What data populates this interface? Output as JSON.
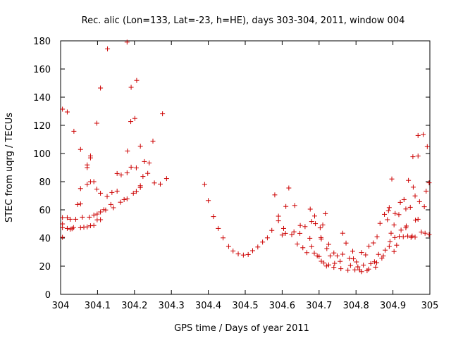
{
  "chart_data": {
    "type": "scatter",
    "title": "Rec. alic (Lon=133, Lat=-23, h=HE), days 303-304, 2011, window 004",
    "xlabel": "GPS time / Days of year 2011",
    "ylabel": "STEC from uqrg / TECUs",
    "xlim": [
      304,
      305
    ],
    "ylim": [
      0,
      180
    ],
    "x_ticks": [
      "304",
      "304.1",
      "304.2",
      "304.3",
      "304.4",
      "304.5",
      "304.6",
      "304.7",
      "304.8",
      "304.9",
      "305"
    ],
    "y_ticks": [
      "0",
      "20",
      "40",
      "60",
      "80",
      "100",
      "120",
      "140",
      "160",
      "180"
    ],
    "x_tick_values": [
      304,
      304.1,
      304.2,
      304.3,
      304.4,
      304.5,
      304.6,
      304.7,
      304.8,
      304.9,
      305
    ],
    "y_tick_values": [
      0,
      20,
      40,
      60,
      80,
      100,
      120,
      140,
      160,
      180
    ],
    "grid": false,
    "marker": "plus",
    "marker_color": "#cc0000",
    "points": [
      [
        304.005,
        131.5
      ],
      [
        304.018,
        129.5
      ],
      [
        304.036,
        115.8
      ],
      [
        304.054,
        102.9
      ],
      [
        304.072,
        91.9
      ],
      [
        304.081,
        98.3
      ],
      [
        304.081,
        96.9
      ],
      [
        304.098,
        121.5
      ],
      [
        304.108,
        146.5
      ],
      [
        304.127,
        174.3
      ],
      [
        304.18,
        179.1
      ],
      [
        304.191,
        147
      ],
      [
        304.206,
        151.9
      ],
      [
        304.201,
        124.9
      ],
      [
        304.19,
        122.7
      ],
      [
        304.181,
        101.8
      ],
      [
        304.216,
        105.2
      ],
      [
        304.25,
        108.8
      ],
      [
        304.276,
        128.2
      ],
      [
        304.005,
        54.5
      ],
      [
        304.018,
        54.5
      ],
      [
        304.026,
        53.3
      ],
      [
        304.041,
        53.3
      ],
      [
        304.059,
        54.8
      ],
      [
        304.078,
        54.8
      ],
      [
        304.072,
        90
      ],
      [
        304.09,
        80
      ],
      [
        304.081,
        80
      ],
      [
        304.098,
        74.7
      ],
      [
        304.108,
        71.8
      ],
      [
        304.126,
        69.5
      ],
      [
        304.139,
        72.3
      ],
      [
        304.153,
        73.3
      ],
      [
        304.164,
        84.8
      ],
      [
        304.18,
        86.3
      ],
      [
        304.191,
        90.3
      ],
      [
        304.205,
        89.8
      ],
      [
        304.216,
        75.9
      ],
      [
        304.227,
        94.3
      ],
      [
        304.24,
        93.3
      ],
      [
        304.236,
        85.9
      ],
      [
        304.223,
        83.7
      ],
      [
        304.254,
        79.1
      ],
      [
        304.27,
        78.3
      ],
      [
        304.287,
        82.2
      ],
      [
        304.005,
        40.5
      ],
      [
        304.005,
        47.3
      ],
      [
        304.005,
        50
      ],
      [
        304.018,
        46.8
      ],
      [
        304.026,
        46.3
      ],
      [
        304.035,
        47.4
      ],
      [
        304.046,
        63.8
      ],
      [
        304.054,
        64.2
      ],
      [
        304.054,
        75.1
      ],
      [
        304.072,
        78.1
      ],
      [
        304.09,
        56.3
      ],
      [
        304.099,
        57
      ],
      [
        304.108,
        58.5
      ],
      [
        304.122,
        59.9
      ],
      [
        304.136,
        63.8
      ],
      [
        304.143,
        61.5
      ],
      [
        304.162,
        65.4
      ],
      [
        304.172,
        67.3
      ],
      [
        304.18,
        67.8
      ],
      [
        304.197,
        71.8
      ],
      [
        304.205,
        73.1
      ],
      [
        304.216,
        77.1
      ],
      [
        304.054,
        47.3
      ],
      [
        304.063,
        47.7
      ],
      [
        304.072,
        47.9
      ],
      [
        304.081,
        48.7
      ],
      [
        304.09,
        48.9
      ],
      [
        304.099,
        52.9
      ],
      [
        304.108,
        53
      ],
      [
        304.117,
        60.1
      ],
      [
        304.153,
        85.8
      ],
      [
        304.031,
        46.6
      ],
      [
        304.39,
        78.1
      ],
      [
        304.4,
        66.6
      ],
      [
        304.414,
        55.2
      ],
      [
        304.427,
        46.8
      ],
      [
        304.44,
        40.1
      ],
      [
        304.455,
        34
      ],
      [
        304.467,
        30.8
      ],
      [
        304.481,
        28.7
      ],
      [
        304.495,
        27.9
      ],
      [
        304.508,
        28.3
      ],
      [
        304.52,
        31
      ],
      [
        304.534,
        33.6
      ],
      [
        304.547,
        37.1
      ],
      [
        304.56,
        40.1
      ],
      [
        304.572,
        45.4
      ],
      [
        304.58,
        70.6
      ],
      [
        304.59,
        55.5
      ],
      [
        304.59,
        52.2
      ],
      [
        304.604,
        46.8
      ],
      [
        304.609,
        43.3
      ],
      [
        304.6,
        42.1
      ],
      [
        304.61,
        62.4
      ],
      [
        304.618,
        75.5
      ],
      [
        304.626,
        42.3
      ],
      [
        304.632,
        44.4
      ],
      [
        304.634,
        63.1
      ],
      [
        304.641,
        35.7
      ],
      [
        304.648,
        43.3
      ],
      [
        304.649,
        48.9
      ],
      [
        304.656,
        33.1
      ],
      [
        304.662,
        48.1
      ],
      [
        304.667,
        29.6
      ],
      [
        304.675,
        39.8
      ],
      [
        304.676,
        60.5
      ],
      [
        304.68,
        51.7
      ],
      [
        304.68,
        33.9
      ],
      [
        304.687,
        29.3
      ],
      [
        304.69,
        50.2
      ],
      [
        304.695,
        27.3
      ],
      [
        304.7,
        26.9
      ],
      [
        304.703,
        47.2
      ],
      [
        304.706,
        39.3
      ],
      [
        304.706,
        23.5
      ],
      [
        304.71,
        49.3
      ],
      [
        304.713,
        22.3
      ],
      [
        304.717,
        57.3
      ],
      [
        304.721,
        32.5
      ],
      [
        304.726,
        20.9
      ],
      [
        304.726,
        35.5
      ],
      [
        304.74,
        19.2
      ],
      [
        304.74,
        29.4
      ],
      [
        304.749,
        27.3
      ],
      [
        304.759,
        18.2
      ],
      [
        304.764,
        43.4
      ],
      [
        304.764,
        28.5
      ],
      [
        304.773,
        36.4
      ],
      [
        304.778,
        17.1
      ],
      [
        304.782,
        25.5
      ],
      [
        304.785,
        20.5
      ],
      [
        304.791,
        30.6
      ],
      [
        304.793,
        25.2
      ],
      [
        304.797,
        17.4
      ],
      [
        304.805,
        19.5
      ],
      [
        304.81,
        17.4
      ],
      [
        304.815,
        29.7
      ],
      [
        304.815,
        16.1
      ],
      [
        304.82,
        20.8
      ],
      [
        304.826,
        28
      ],
      [
        304.83,
        16.8
      ],
      [
        304.834,
        17.9
      ],
      [
        304.835,
        34.2
      ],
      [
        304.84,
        21.8
      ],
      [
        304.847,
        36.5
      ],
      [
        304.853,
        19.3
      ],
      [
        304.856,
        22.5
      ],
      [
        304.857,
        40.9
      ],
      [
        304.865,
        50.4
      ],
      [
        304.87,
        25.7
      ],
      [
        304.874,
        27.3
      ],
      [
        304.877,
        56.8
      ],
      [
        304.879,
        31.4
      ],
      [
        304.885,
        53
      ],
      [
        304.888,
        59.4
      ],
      [
        304.89,
        61.6
      ],
      [
        304.892,
        37.5
      ],
      [
        304.895,
        43.4
      ],
      [
        304.897,
        81.9
      ],
      [
        304.903,
        30.4
      ],
      [
        304.903,
        49.3
      ],
      [
        304.906,
        57.4
      ],
      [
        304.91,
        34.9
      ],
      [
        304.916,
        56.6
      ],
      [
        304.92,
        65.3
      ],
      [
        304.922,
        45.6
      ],
      [
        304.928,
        40.9
      ],
      [
        304.93,
        67.3
      ],
      [
        304.935,
        60.6
      ],
      [
        304.936,
        48.5
      ],
      [
        304.94,
        41.4
      ],
      [
        304.942,
        80.9
      ],
      [
        304.947,
        61.8
      ],
      [
        304.954,
        97.7
      ],
      [
        304.955,
        76.1
      ],
      [
        304.96,
        69.9
      ],
      [
        304.961,
        52.7
      ],
      [
        304.968,
        98.2
      ],
      [
        304.968,
        112.8
      ],
      [
        304.968,
        53.3
      ],
      [
        304.972,
        65.8
      ],
      [
        304.977,
        44.2
      ],
      [
        304.982,
        113.5
      ],
      [
        304.985,
        62.2
      ],
      [
        304.987,
        43.4
      ],
      [
        304.99,
        73.3
      ],
      [
        304.993,
        104.9
      ],
      [
        304.998,
        79.2
      ],
      [
        304.998,
        42.4
      ],
      [
        304.949,
        40.4
      ],
      [
        304.96,
        40.6
      ],
      [
        304.905,
        40.3
      ],
      [
        304.89,
        34
      ],
      [
        304.917,
        41.1
      ],
      [
        304.935,
        47.2
      ],
      [
        304.952,
        41.4
      ],
      [
        304.73,
        27.3
      ],
      [
        304.705,
        40.3
      ],
      [
        304.688,
        55.6
      ],
      [
        304.72,
        20.1
      ],
      [
        304.742,
        22
      ],
      [
        304.757,
        23.4
      ],
      [
        304.801,
        23
      ],
      [
        304.85,
        23.1
      ],
      [
        304.861,
        28.4
      ]
    ]
  }
}
